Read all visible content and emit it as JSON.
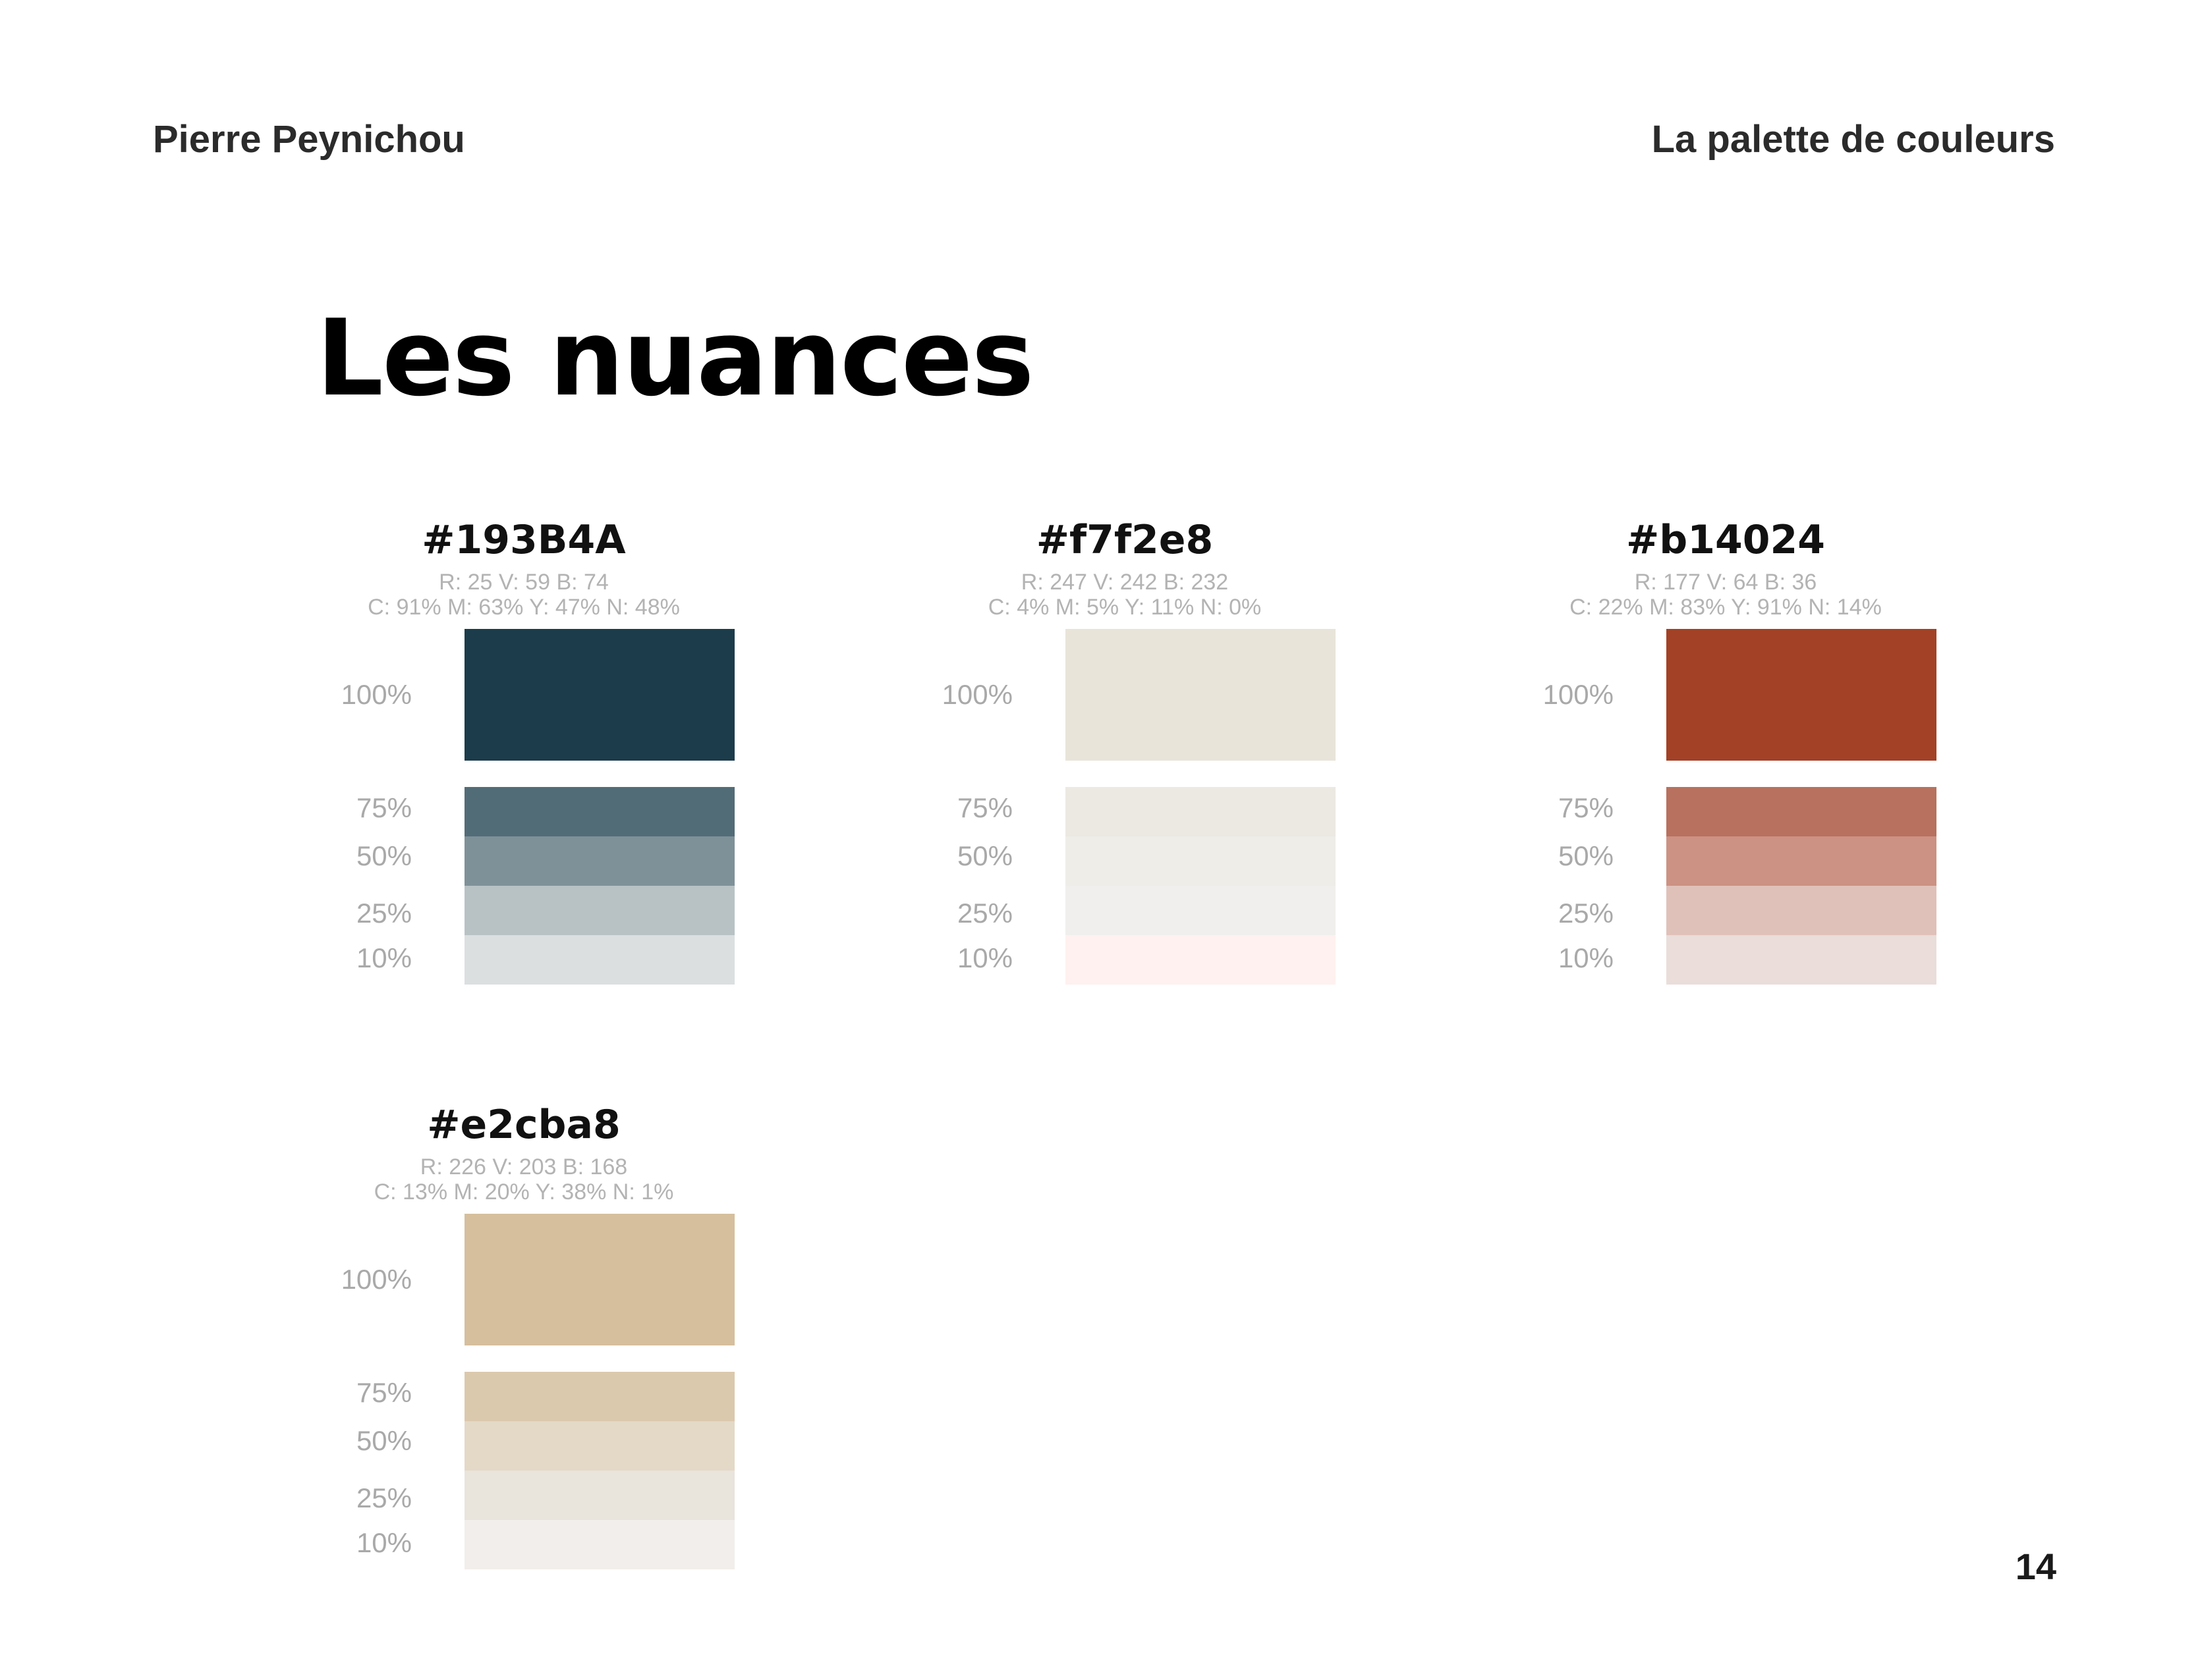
{
  "header": {
    "author": "Pierre Peynichou",
    "section": "La palette de couleurs"
  },
  "title": "Les nuances",
  "page_number": "14",
  "palettes": [
    {
      "hex": "#193B4A",
      "rgb": "R: 25 V: 59 B: 74",
      "cmyk": "C: 91% M: 63% Y: 47% N: 48%",
      "swatches": [
        {
          "label": "100%",
          "color": "#1c3c4b"
        },
        {
          "label": "75%",
          "color": "#526c77"
        },
        {
          "label": "50%",
          "color": "#7f9198"
        },
        {
          "label": "25%",
          "color": "#b8c2c5"
        },
        {
          "label": "10%",
          "color": "#dbdfe0"
        }
      ]
    },
    {
      "hex": "#f7f2e8",
      "rgb": "R: 247 V: 242 B: 232",
      "cmyk": "C: 4% M: 5% Y: 11% N: 0%",
      "swatches": [
        {
          "label": "100%",
          "color": "#e8e4d9"
        },
        {
          "label": "75%",
          "color": "#ece8e2"
        },
        {
          "label": "50%",
          "color": "#eeede8"
        },
        {
          "label": "25%",
          "color": "#f0efed"
        },
        {
          "label": "10%",
          "color": "#fff1ef"
        }
      ]
    },
    {
      "hex": "#b14024",
      "rgb": "R: 177 V: 64 B: 36",
      "cmyk": "C: 22% M: 83% Y: 91% N: 14%",
      "swatches": [
        {
          "label": "100%",
          "color": "#a34126"
        },
        {
          "label": "75%",
          "color": "#b8715e"
        },
        {
          "label": "50%",
          "color": "#cc9283"
        },
        {
          "label": "25%",
          "color": "#e0c1b9"
        },
        {
          "label": "10%",
          "color": "#eaddda"
        }
      ]
    },
    {
      "hex": "#e2cba8",
      "rgb": "R: 226 V: 203 B: 168",
      "cmyk": "C: 13% M: 20% Y: 38% N: 1%",
      "swatches": [
        {
          "label": "100%",
          "color": "#d6bf9d"
        },
        {
          "label": "75%",
          "color": "#dbc9ad"
        },
        {
          "label": "50%",
          "color": "#e4d9c7"
        },
        {
          "label": "25%",
          "color": "#e9e4dc"
        },
        {
          "label": "10%",
          "color": "#f1eeeb"
        }
      ]
    }
  ]
}
